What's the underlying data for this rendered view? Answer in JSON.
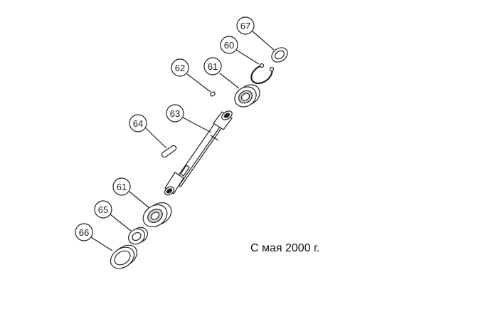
{
  "callouts": {
    "c67": "67",
    "c60": "60",
    "c62": "62",
    "c61_top": "61",
    "c63": "63",
    "c64": "64",
    "c61_bottom": "61",
    "c65": "65",
    "c66": "66"
  },
  "caption": "С мая 2000 г.",
  "colors": {
    "line": "#222222",
    "fill": "#ffffff",
    "shade": "#cfcfcf"
  }
}
